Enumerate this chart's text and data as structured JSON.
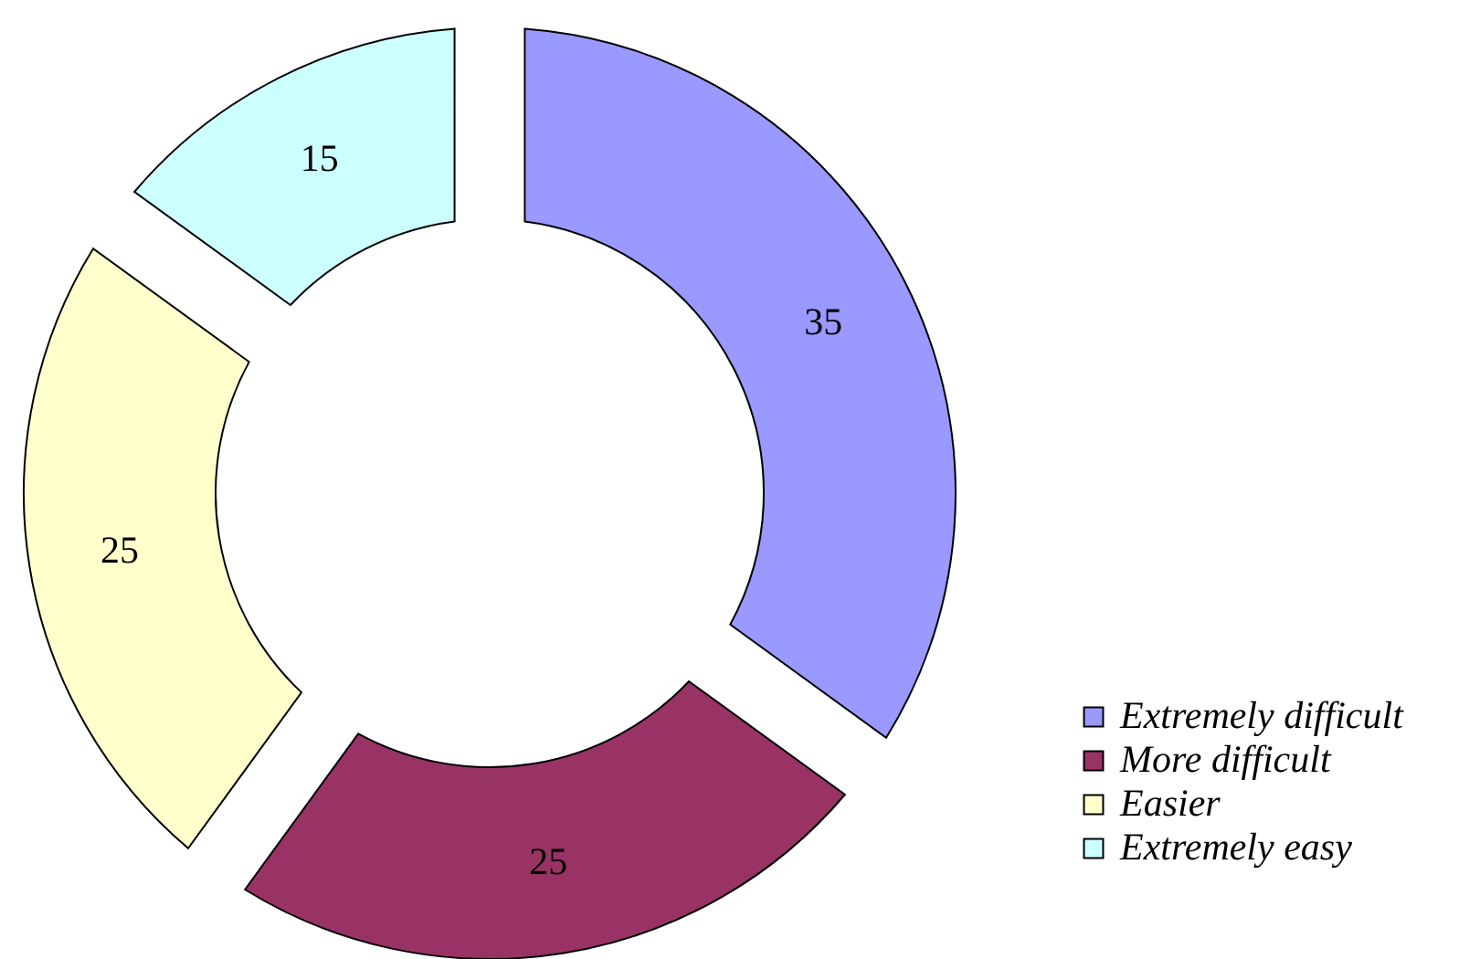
{
  "chart_data": {
    "type": "donut",
    "categories": [
      "Extremely difficult",
      "More difficult",
      "Easier",
      "Extremely easy"
    ],
    "values": [
      35,
      25,
      25,
      15
    ],
    "colors": [
      "#9999ff",
      "#993366",
      "#ffffcc",
      "#ccffff"
    ],
    "data_labels": true,
    "legend": "bottom right"
  }
}
